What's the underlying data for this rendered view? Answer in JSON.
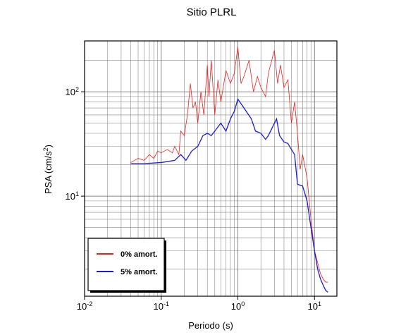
{
  "chart_data": {
    "type": "line",
    "title": "Sitio PLRL",
    "xlabel": "Periodo (s)",
    "ylabel": {
      "text": "PSA (cm/s",
      "sup": "2",
      "end": ")"
    },
    "xscale": "log",
    "yscale": "log",
    "grid": true,
    "legend": "lower left",
    "xlim": [
      0.01,
      19.6
    ],
    "ylim": [
      1.1,
      307
    ],
    "xticks": [
      {
        "value": 0.01,
        "label": "10",
        "exp": "-2"
      },
      {
        "value": 0.1,
        "label": "10",
        "exp": "-1"
      },
      {
        "value": 1,
        "label": "10",
        "exp": "0"
      },
      {
        "value": 10,
        "label": "10",
        "exp": "1"
      }
    ],
    "yticks": [
      {
        "value": 10,
        "label": "10",
        "exp": "1"
      },
      {
        "value": 100,
        "label": "10",
        "exp": "2"
      }
    ],
    "xminor": [
      0.02,
      0.03,
      0.04,
      0.05,
      0.06,
      0.07,
      0.08,
      0.09,
      0.2,
      0.3,
      0.4,
      0.5,
      0.6,
      0.7,
      0.8,
      0.9,
      2,
      3,
      4,
      5,
      6,
      7,
      8,
      9
    ],
    "yminor": [
      2,
      3,
      4,
      5,
      6,
      7,
      8,
      9,
      20,
      30,
      40,
      50,
      60,
      70,
      80,
      90,
      200
    ],
    "series": [
      {
        "name": "0% amort.",
        "color": "#e8201c",
        "x": [
          0.04,
          0.05,
          0.06,
          0.07,
          0.08,
          0.09,
          0.1,
          0.12,
          0.14,
          0.15,
          0.17,
          0.18,
          0.2,
          0.22,
          0.24,
          0.26,
          0.28,
          0.3,
          0.33,
          0.36,
          0.4,
          0.42,
          0.45,
          0.5,
          0.55,
          0.6,
          0.7,
          0.8,
          0.9,
          1.0,
          1.1,
          1.2,
          1.4,
          1.6,
          1.8,
          2,
          2.3,
          2.5,
          3,
          3.3,
          3.6,
          4,
          4.5,
          5,
          5.5,
          6,
          6.5,
          7,
          8,
          9,
          10,
          11,
          12,
          13,
          14,
          15
        ],
        "values": [
          21,
          23,
          22,
          25,
          23,
          27,
          26,
          28,
          26,
          30,
          25,
          42,
          38,
          60,
          120,
          70,
          80,
          50,
          100,
          60,
          180,
          90,
          200,
          60,
          130,
          80,
          160,
          120,
          150,
          270,
          120,
          140,
          200,
          100,
          140,
          110,
          90,
          150,
          250,
          120,
          180,
          110,
          130,
          50,
          80,
          40,
          18,
          25,
          15,
          6,
          3,
          2.3,
          1.8,
          1.6,
          1.5,
          1.5
        ]
      },
      {
        "name": "5% amort.",
        "color": "#1a1adb",
        "x": [
          0.04,
          0.06,
          0.1,
          0.15,
          0.18,
          0.2,
          0.21,
          0.25,
          0.3,
          0.35,
          0.4,
          0.45,
          0.5,
          0.6,
          0.7,
          0.8,
          0.9,
          1.0,
          1.2,
          1.5,
          1.7,
          2,
          2.3,
          2.5,
          3,
          3.2,
          3.5,
          4,
          4.5,
          5,
          5.5,
          6,
          7,
          8,
          9,
          10,
          11,
          12,
          13,
          14,
          15
        ],
        "values": [
          20.5,
          20.5,
          21,
          22,
          25,
          23,
          22,
          27,
          30,
          38,
          40,
          38,
          42,
          50,
          42,
          55,
          65,
          85,
          70,
          55,
          42,
          40,
          35,
          38,
          50,
          55,
          38,
          33,
          32,
          28,
          25,
          13,
          12.5,
          9,
          5,
          3,
          2,
          1.6,
          1.4,
          1.25,
          1.2
        ]
      }
    ]
  }
}
